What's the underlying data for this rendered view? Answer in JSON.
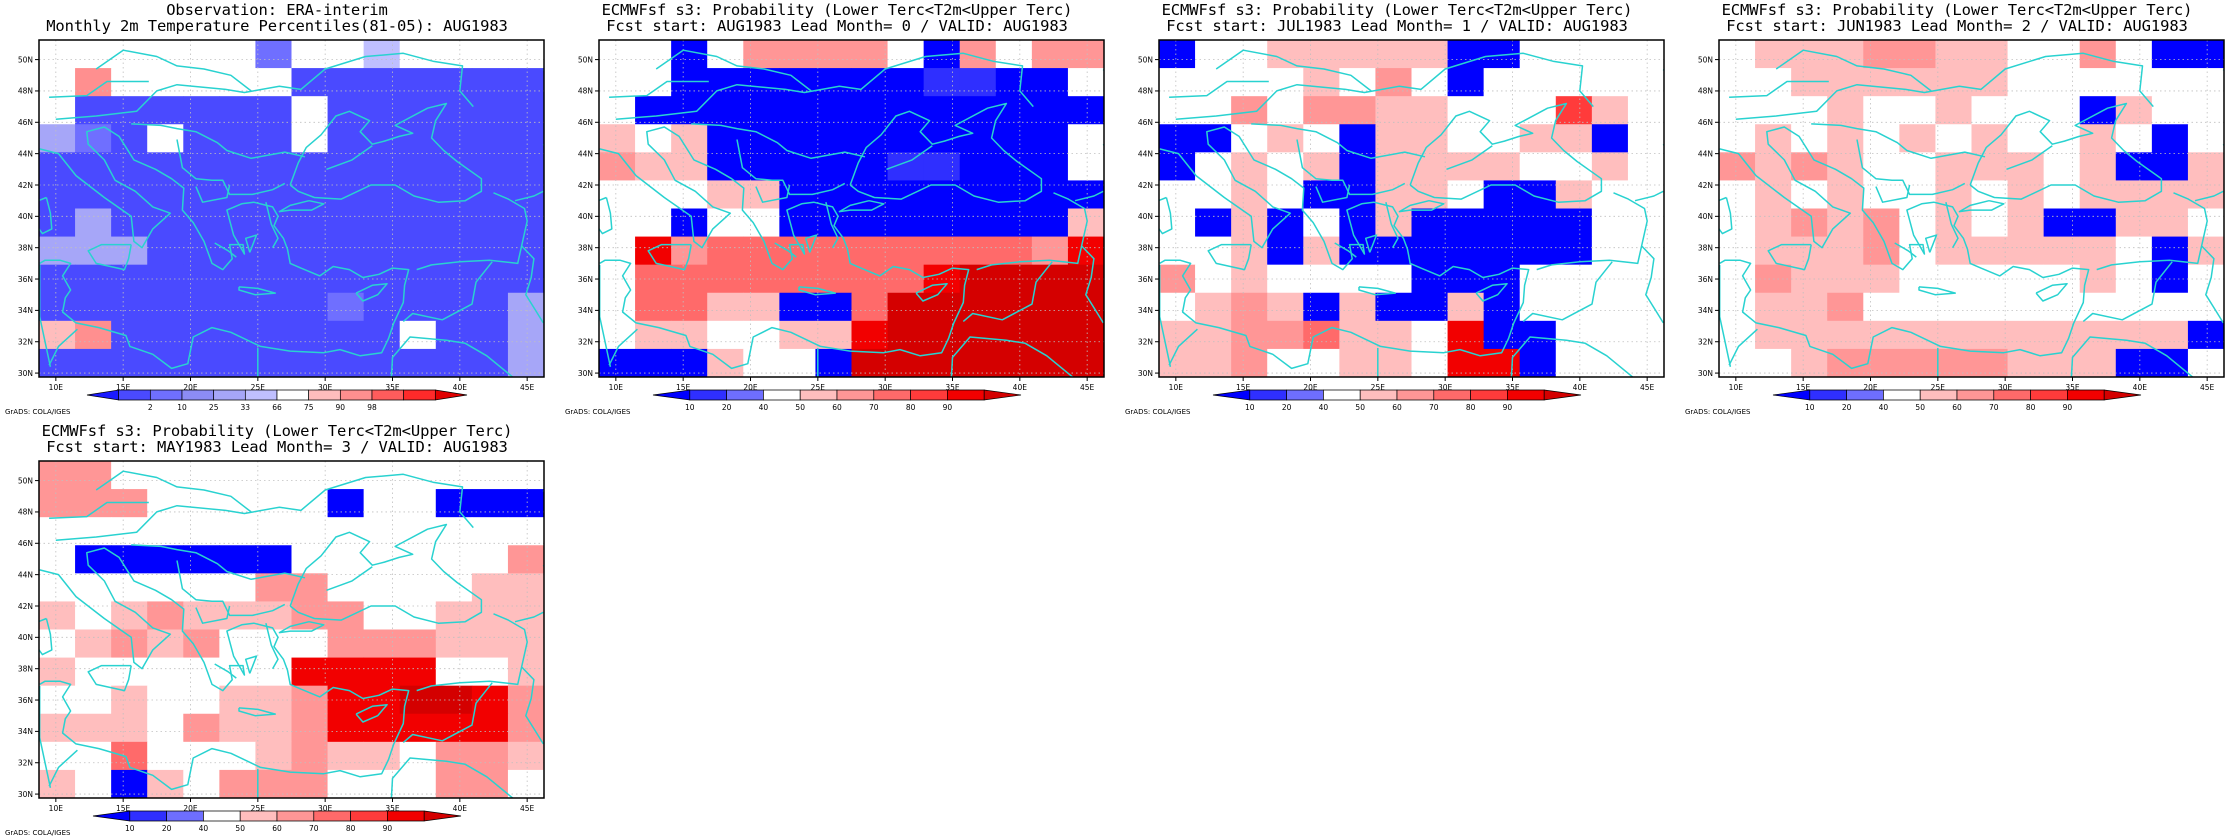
{
  "colors": {
    "coast": "#29d2d0",
    "grid": "#bfbfbf",
    "obs_bins": [
      "#1a1aff",
      "#4a4aff",
      "#6f6fff",
      "#8c8cf5",
      "#a6a6f8",
      "#bfbfff",
      "#ffffff",
      "#ffbdbd",
      "#ff8f8f",
      "#ff5c5c",
      "#ff2a2a",
      "#e00000"
    ],
    "prob_bins": [
      "#0000ff",
      "#2f2fff",
      "#6e6eff",
      "#ffffff",
      "#ffbebe",
      "#ff9696",
      "#ff6a6a",
      "#ff3b3b",
      "#f20000",
      "#d40000"
    ]
  },
  "map_axes": {
    "x_ticks": [
      "10E",
      "15E",
      "20E",
      "25E",
      "30E",
      "35E",
      "40E",
      "45E"
    ],
    "y_ticks": [
      "50N",
      "48N",
      "46N",
      "44N",
      "42N",
      "40N",
      "38N",
      "36N",
      "34N",
      "32N",
      "30N"
    ],
    "lon_range": [
      8.75,
      46.25
    ],
    "lat_range": [
      29.75,
      51.25
    ]
  },
  "footer_text": "GrADS: COLA/IGES",
  "panels": [
    {
      "title_line1": "Observation: ERA-interim",
      "title_line2": "Monthly 2m Temperature Percentiles(81-05): AUG1983",
      "colorbar_labels": [
        "2",
        "10",
        "25",
        "33",
        "66",
        "75",
        "90",
        "98"
      ],
      "palette": "obs_bins",
      "grid": [
        "66666626656666",
        "68666661111111",
        "61111116111111",
        "42161116111111",
        "11111111111111",
        "11111111111111",
        "14111111111111",
        "44411111111111",
        "11111111111111",
        "11111111211114",
        "78111111116114",
        "11111111111114"
      ]
    },
    {
      "title_line1": "ECMWFsf s3: Probability (Lower Terc<T2m<Upper Terc)",
      "title_line2": "Fcst start: AUG1983  Lead Month= 0 / VALID: AUG1983",
      "colorbar_labels": [
        "10",
        "20",
        "40",
        "50",
        "60",
        "70",
        "80",
        "90"
      ],
      "palette": "prob_bins",
      "grid": [
        "33035555305355",
        "33000000011003",
        "30000000000000",
        "43400000000003",
        "54400000110003",
        "33344000000000",
        "33033000000004",
        "38566666666658",
        "36666666689999",
        "36644006999999",
        "34433448999999",
        "00043309999999"
      ]
    },
    {
      "title_line1": "ECMWFsf s3: Probability (Lower Terc<T2m<Upper Terc)",
      "title_line2": "Fcst start: JUL1983  Lead Month= 1 / VALID: AUG1983",
      "colorbar_labels": [
        "10",
        "20",
        "40",
        "50",
        "60",
        "70",
        "80",
        "90"
      ],
      "palette": "prob_bins",
      "grid": [
        "03344444003333",
        "33334353033333",
        "33535544333743",
        "00343044334403",
        "03434044443343",
        "33430044300433",
        "30403040000033",
        "33404000000033",
        "53433330003333",
        "34540400403333",
        "44556443800333",
        "44533443880333"
      ]
    },
    {
      "title_line1": "ECMWFsf s3: Probability (Lower Terc<T2m<Upper Terc)",
      "title_line2": "Fcst start: JUN1983  Lead Month= 2 / VALID: AUG1983",
      "colorbar_labels": [
        "10",
        "20",
        "40",
        "50",
        "60",
        "70",
        "80",
        "90"
      ],
      "palette": "prob_bins",
      "grid": [
        "34445544335300",
        "33444444333333",
        "33343343330433",
        "34343434334303",
        "54543344434004",
        "34343343434444",
        "34545343400443",
        "34445344444304",
        "35444333334303",
        "34453333333333",
        "34444444444440",
        "33455555444003"
      ]
    },
    {
      "title_line1": "ECMWFsf s3: Probability (Lower Terc<T2m<Upper Terc)",
      "title_line2": "Fcst start: MAY1983  Lead Month= 3 / VALID: AUG1983",
      "colorbar_labels": [
        "10",
        "20",
        "40",
        "50",
        "60",
        "70",
        "80",
        "90"
      ],
      "palette": "prob_bins",
      "grid": [
        "55333333333333",
        "55533333033000",
        "33333333333333",
        "30000003333335",
        "33333355333344",
        "43454445533444",
        "34545333555444",
        "43333338888334",
        "33433445889985",
        "44435445888885",
        "33633345443554",
        "43043555333553"
      ]
    }
  ]
}
